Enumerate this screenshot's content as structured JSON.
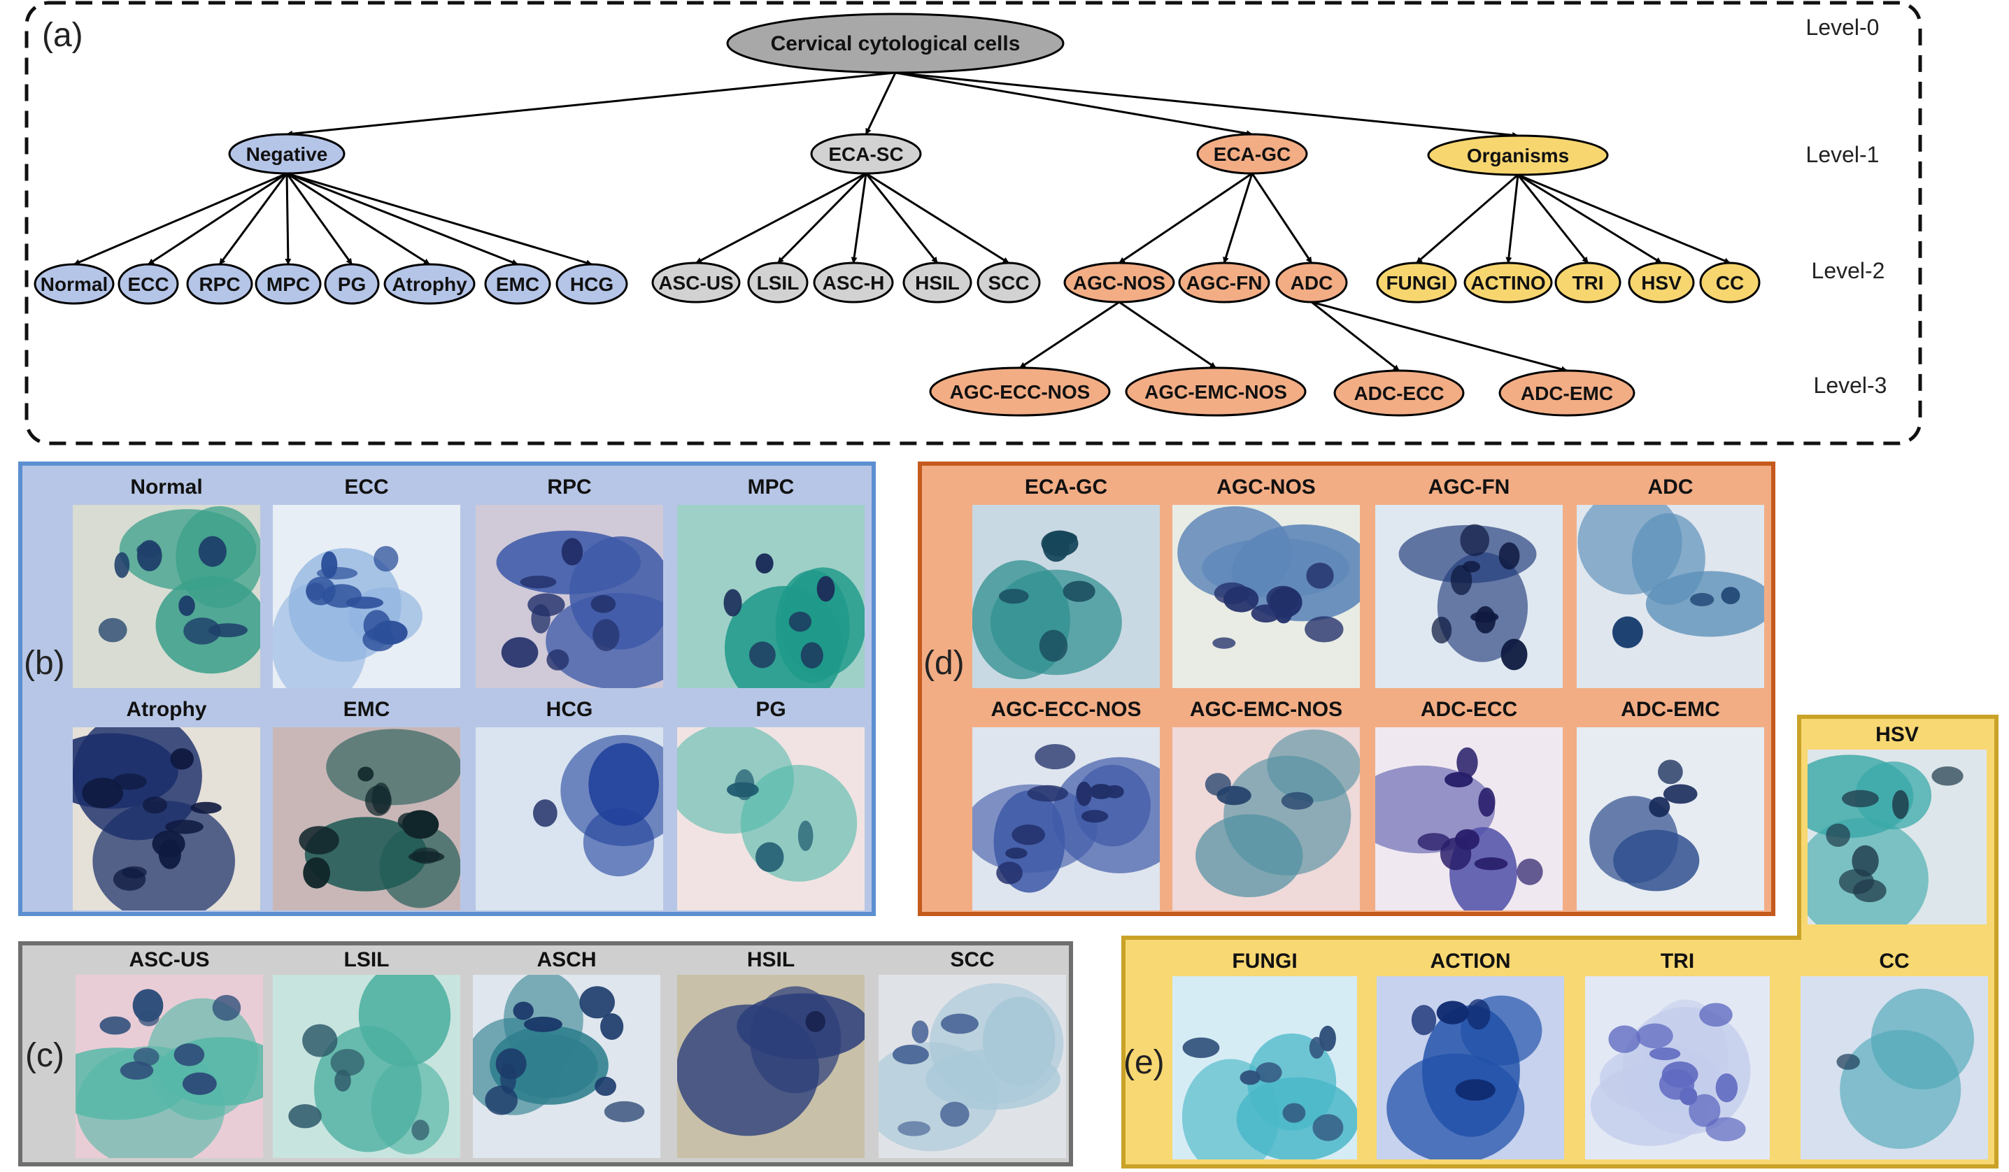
{
  "tree": {
    "panel_label": "(a)",
    "levels": [
      "Level-0",
      "Level-1",
      "Level-2",
      "Level-3"
    ],
    "colors": {
      "root": "#a8a8a8",
      "negative": "#b5c5e8",
      "eca_sc": "#d2d2d2",
      "eca_gc": "#f2ad85",
      "organisms": "#f7d670"
    },
    "nodes": [
      {
        "id": "root",
        "label": "Cervical cytological cells",
        "group": "root"
      },
      {
        "id": "negative",
        "label": "Negative",
        "group": "negative"
      },
      {
        "id": "eca-sc",
        "label": "ECA-SC",
        "group": "eca_sc"
      },
      {
        "id": "eca-gc",
        "label": "ECA-GC",
        "group": "eca_gc"
      },
      {
        "id": "organisms",
        "label": "Organisms",
        "group": "organisms"
      },
      {
        "id": "normal",
        "label": "Normal",
        "group": "negative"
      },
      {
        "id": "ecc",
        "label": "ECC",
        "group": "negative"
      },
      {
        "id": "rpc",
        "label": "RPC",
        "group": "negative"
      },
      {
        "id": "mpc",
        "label": "MPC",
        "group": "negative"
      },
      {
        "id": "pg",
        "label": "PG",
        "group": "negative"
      },
      {
        "id": "atrophy",
        "label": "Atrophy",
        "group": "negative"
      },
      {
        "id": "emc",
        "label": "EMC",
        "group": "negative"
      },
      {
        "id": "hcg",
        "label": "HCG",
        "group": "negative"
      },
      {
        "id": "asc-us",
        "label": "ASC-US",
        "group": "eca_sc"
      },
      {
        "id": "lsil",
        "label": "LSIL",
        "group": "eca_sc"
      },
      {
        "id": "asc-h",
        "label": "ASC-H",
        "group": "eca_sc"
      },
      {
        "id": "hsil",
        "label": "HSIL",
        "group": "eca_sc"
      },
      {
        "id": "scc",
        "label": "SCC",
        "group": "eca_sc"
      },
      {
        "id": "agc-nos",
        "label": "AGC-NOS",
        "group": "eca_gc"
      },
      {
        "id": "agc-fn",
        "label": "AGC-FN",
        "group": "eca_gc"
      },
      {
        "id": "adc",
        "label": "ADC",
        "group": "eca_gc"
      },
      {
        "id": "fungi",
        "label": "FUNGI",
        "group": "organisms"
      },
      {
        "id": "actino",
        "label": "ACTINO",
        "group": "organisms"
      },
      {
        "id": "tri",
        "label": "TRI",
        "group": "organisms"
      },
      {
        "id": "hsv",
        "label": "HSV",
        "group": "organisms"
      },
      {
        "id": "cc",
        "label": "CC",
        "group": "organisms"
      },
      {
        "id": "agc-ecc-nos",
        "label": "AGC-ECC-NOS",
        "group": "eca_gc"
      },
      {
        "id": "agc-emc-nos",
        "label": "AGC-EMC-NOS",
        "group": "eca_gc"
      },
      {
        "id": "adc-ecc",
        "label": "ADC-ECC",
        "group": "eca_gc"
      },
      {
        "id": "adc-emc",
        "label": "ADC-EMC",
        "group": "eca_gc"
      }
    ],
    "edges": [
      [
        "root",
        "negative"
      ],
      [
        "root",
        "eca-sc"
      ],
      [
        "root",
        "eca-gc"
      ],
      [
        "root",
        "organisms"
      ],
      [
        "negative",
        "normal"
      ],
      [
        "negative",
        "ecc"
      ],
      [
        "negative",
        "rpc"
      ],
      [
        "negative",
        "mpc"
      ],
      [
        "negative",
        "pg"
      ],
      [
        "negative",
        "atrophy"
      ],
      [
        "negative",
        "emc"
      ],
      [
        "negative",
        "hcg"
      ],
      [
        "eca-sc",
        "asc-us"
      ],
      [
        "eca-sc",
        "lsil"
      ],
      [
        "eca-sc",
        "asc-h"
      ],
      [
        "eca-sc",
        "hsil"
      ],
      [
        "eca-sc",
        "scc"
      ],
      [
        "eca-gc",
        "agc-nos"
      ],
      [
        "eca-gc",
        "agc-fn"
      ],
      [
        "eca-gc",
        "adc"
      ],
      [
        "organisms",
        "fungi"
      ],
      [
        "organisms",
        "actino"
      ],
      [
        "organisms",
        "tri"
      ],
      [
        "organisms",
        "hsv"
      ],
      [
        "organisms",
        "cc"
      ],
      [
        "agc-nos",
        "agc-ecc-nos"
      ],
      [
        "agc-nos",
        "agc-emc-nos"
      ],
      [
        "adc",
        "adc-ecc"
      ],
      [
        "adc",
        "adc-emc"
      ]
    ]
  },
  "panels": {
    "b": {
      "label": "(b)",
      "border": "#5b8fd0",
      "fill": "#b7c6e6",
      "cells": [
        "Normal",
        "ECC",
        "RPC",
        "MPC",
        "Atrophy",
        "EMC",
        "HCG",
        "PG"
      ]
    },
    "d": {
      "label": "(d)",
      "border": "#c55a1e",
      "fill": "#f2ad85",
      "cells": [
        "ECA-GC",
        "AGC-NOS",
        "AGC-FN",
        "ADC",
        "AGC-ECC-NOS",
        "AGC-EMC-NOS",
        "ADC-ECC",
        "ADC-EMC"
      ]
    },
    "c": {
      "label": "(c)",
      "border": "#6e6e6e",
      "fill": "#d0cfcf",
      "cells": [
        "ASC-US",
        "LSIL",
        "ASCH",
        "HSIL",
        "SCC"
      ]
    },
    "e": {
      "label": "(e)",
      "border": "#c9a227",
      "fill": "#f8d872",
      "cells": [
        "FUNGI",
        "ACTION",
        "TRI",
        "CC",
        "HSV"
      ]
    }
  }
}
